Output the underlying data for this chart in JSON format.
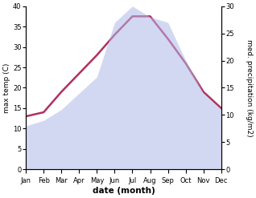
{
  "months": [
    "Jan",
    "Feb",
    "Mar",
    "Apr",
    "May",
    "Jun",
    "Jul",
    "Aug",
    "Sep",
    "Oct",
    "Nov",
    "Dec"
  ],
  "temp_C": [
    13.0,
    14.0,
    19.0,
    23.5,
    28.0,
    33.0,
    37.5,
    37.5,
    32.0,
    26.0,
    19.0,
    15.0
  ],
  "precip_mm": [
    8.0,
    9.0,
    11.0,
    14.0,
    17.0,
    27.0,
    30.0,
    28.0,
    27.0,
    20.0,
    14.0,
    11.0
  ],
  "temp_color": "#b03060",
  "precip_color": "#b0b8e8",
  "precip_alpha": 0.55,
  "temp_ylim": [
    0,
    40
  ],
  "precip_ylim": [
    0,
    30
  ],
  "xlabel": "date (month)",
  "ylabel_left": "max temp (C)",
  "ylabel_right": "med. precipitation (kg/m2)",
  "background_color": "#ffffff",
  "line_width": 1.8,
  "tick_fontsize": 6.0,
  "label_fontsize": 6.5,
  "xlabel_fontsize": 7.5
}
